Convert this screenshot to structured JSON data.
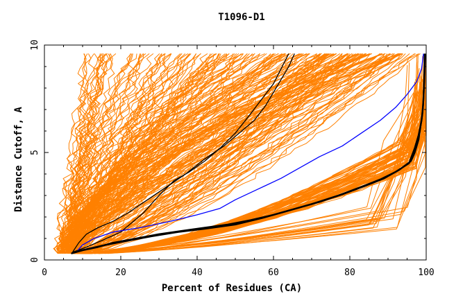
{
  "chart_data": {
    "type": "line",
    "title": "T1096-D1",
    "xlabel": "Percent of Residues (CA)",
    "ylabel": "Distance Cutoff, A",
    "xlim": [
      0,
      100
    ],
    "ylim": [
      0,
      10
    ],
    "x_ticks": [
      0,
      20,
      40,
      60,
      80,
      100
    ],
    "y_ticks": [
      0,
      5,
      10
    ],
    "grid": false,
    "legend": "none",
    "colors": {
      "background_series": "#ff8000",
      "highlight_black": "#000000",
      "highlight_blue": "#0000ff"
    },
    "background_series_count": 300,
    "series": [
      {
        "color": "#000000",
        "points": [
          [
            7.5,
            0.4
          ],
          [
            9,
            0.8
          ],
          [
            11,
            1.2
          ],
          [
            14,
            1.5
          ],
          [
            18,
            1.8
          ],
          [
            22,
            2.2
          ],
          [
            27,
            2.8
          ],
          [
            32,
            3.4
          ],
          [
            37,
            4.0
          ],
          [
            42,
            4.7
          ],
          [
            47,
            5.3
          ],
          [
            51,
            5.9
          ],
          [
            55,
            6.5
          ],
          [
            58,
            7.2
          ],
          [
            60,
            7.8
          ],
          [
            62,
            8.4
          ],
          [
            64,
            9.0
          ],
          [
            65.5,
            9.6
          ]
        ]
      },
      {
        "color": "#000000",
        "points": [
          [
            8,
            0.4
          ],
          [
            11,
            0.6
          ],
          [
            15,
            0.9
          ],
          [
            20,
            1.3
          ],
          [
            26,
            2.2
          ],
          [
            30,
            3.0
          ],
          [
            34,
            3.7
          ],
          [
            38,
            4.1
          ],
          [
            42,
            4.6
          ],
          [
            46,
            5.2
          ],
          [
            50,
            5.9
          ],
          [
            54,
            6.8
          ],
          [
            57,
            7.5
          ],
          [
            60,
            8.2
          ],
          [
            62,
            8.9
          ],
          [
            64,
            9.6
          ]
        ]
      },
      {
        "color": "#0000ff",
        "points": [
          [
            8.5,
            0.4
          ],
          [
            10,
            0.7
          ],
          [
            13,
            1.0
          ],
          [
            18,
            1.3
          ],
          [
            25,
            1.5
          ],
          [
            33,
            1.8
          ],
          [
            40,
            2.1
          ],
          [
            46,
            2.4
          ],
          [
            50,
            2.8
          ],
          [
            56,
            3.3
          ],
          [
            62,
            3.8
          ],
          [
            67,
            4.3
          ],
          [
            72,
            4.8
          ],
          [
            78,
            5.3
          ],
          [
            83,
            5.9
          ],
          [
            88,
            6.5
          ],
          [
            92,
            7.1
          ],
          [
            95,
            7.7
          ],
          [
            97.5,
            8.3
          ],
          [
            98.8,
            8.9
          ],
          [
            99.3,
            9.6
          ]
        ]
      },
      {
        "color": "#000000",
        "points": [
          [
            7,
            0.3
          ],
          [
            10,
            0.45
          ],
          [
            14,
            0.6
          ],
          [
            18,
            0.8
          ],
          [
            24,
            1.0
          ],
          [
            30,
            1.2
          ],
          [
            36,
            1.35
          ],
          [
            42,
            1.5
          ],
          [
            48,
            1.65
          ],
          [
            54,
            1.85
          ],
          [
            60,
            2.1
          ],
          [
            66,
            2.4
          ],
          [
            72,
            2.7
          ],
          [
            78,
            3.05
          ],
          [
            84,
            3.45
          ],
          [
            89,
            3.8
          ],
          [
            93,
            4.2
          ],
          [
            96,
            4.6
          ],
          [
            97,
            5.0
          ],
          [
            98,
            5.6
          ],
          [
            98.5,
            6.2
          ],
          [
            99,
            6.8
          ],
          [
            99.3,
            7.5
          ],
          [
            99.5,
            8.5
          ],
          [
            99.6,
            9.6
          ]
        ]
      },
      {
        "color": "#000000",
        "points": [
          [
            7.3,
            0.35
          ],
          [
            11,
            0.5
          ],
          [
            16,
            0.7
          ],
          [
            22,
            0.9
          ],
          [
            28,
            1.1
          ],
          [
            35,
            1.3
          ],
          [
            42,
            1.45
          ],
          [
            50,
            1.65
          ],
          [
            57,
            1.95
          ],
          [
            63,
            2.25
          ],
          [
            70,
            2.6
          ],
          [
            77,
            3.0
          ],
          [
            83,
            3.4
          ],
          [
            88,
            3.75
          ],
          [
            92,
            4.1
          ],
          [
            95.5,
            4.5
          ],
          [
            97,
            5.2
          ],
          [
            98,
            5.8
          ],
          [
            98.8,
            6.5
          ],
          [
            99.2,
            7.2
          ],
          [
            99.4,
            8.0
          ],
          [
            99.6,
            9.0
          ],
          [
            99.7,
            9.6
          ]
        ]
      }
    ]
  }
}
